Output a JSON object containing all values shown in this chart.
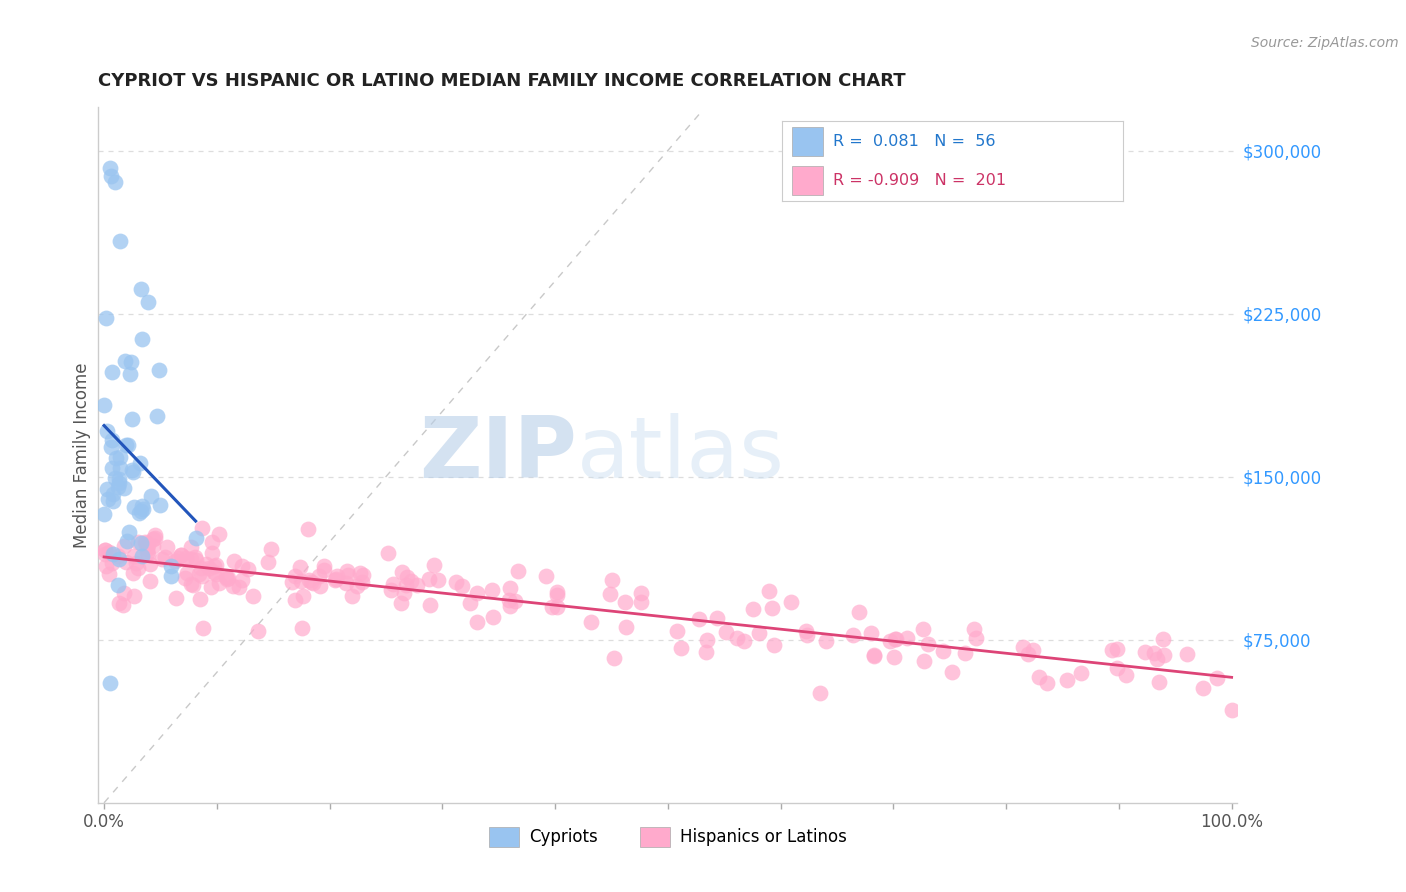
{
  "title": "CYPRIOT VS HISPANIC OR LATINO MEDIAN FAMILY INCOME CORRELATION CHART",
  "source_text": "Source: ZipAtlas.com",
  "ylabel": "Median Family Income",
  "cypriot_color": "#99c4f0",
  "hispanic_color": "#ffaacc",
  "cypriot_line_color": "#2255bb",
  "hispanic_line_color": "#dd4477",
  "xlim": [
    -0.005,
    1.005
  ],
  "ylim": [
    0,
    320000
  ],
  "yticks": [
    0,
    75000,
    150000,
    225000,
    300000
  ],
  "xticks": [
    0.0,
    0.1,
    0.2,
    0.3,
    0.4,
    0.5,
    0.6,
    0.7,
    0.8,
    0.9,
    1.0
  ],
  "watermark_zip": "ZIP",
  "watermark_atlas": "atlas",
  "bg_color": "#ffffff",
  "grid_color": "#dddddd",
  "title_color": "#222222",
  "source_color": "#999999",
  "axis_label_color": "#555555",
  "right_tick_color": "#3399ff"
}
